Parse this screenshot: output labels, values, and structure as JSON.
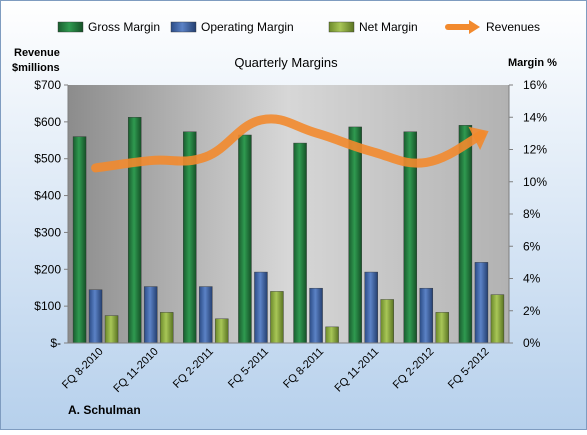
{
  "chart_data": {
    "type": "bar",
    "title": "Quarterly Margins",
    "left_axis_title_line1": "Revenue",
    "left_axis_title_line2": "$millions",
    "right_axis_title": "Margin %",
    "author": "A. Schulman",
    "categories": [
      "FQ 8-2010",
      "FQ 11-2010",
      "FQ 2-2011",
      "FQ 5-2011",
      "FQ 8-2011",
      "FQ 11-2011",
      "FQ 2-2012",
      "FQ 5-2012"
    ],
    "left_axis": {
      "min": 0,
      "max": 700,
      "step": 100,
      "tick_labels": [
        "$-",
        "$100",
        "$200",
        "$300",
        "$400",
        "$500",
        "$600",
        "$700"
      ]
    },
    "right_axis": {
      "min": 0,
      "max": 16,
      "step": 2,
      "tick_labels": [
        "0%",
        "2%",
        "4%",
        "6%",
        "8%",
        "10%",
        "12%",
        "14%",
        "16%"
      ]
    },
    "series": [
      {
        "name": "Gross Margin",
        "axis": "right",
        "unit": "%",
        "color": "#1f7a3c",
        "values": [
          12.8,
          14.0,
          13.1,
          12.9,
          12.4,
          13.4,
          13.1,
          13.5
        ]
      },
      {
        "name": "Operating Margin",
        "axis": "right",
        "unit": "%",
        "color": "#3d62a8",
        "values": [
          3.3,
          3.5,
          3.5,
          4.4,
          3.4,
          4.4,
          3.4,
          5.0
        ]
      },
      {
        "name": "Net Margin",
        "axis": "right",
        "unit": "%",
        "color": "#8aab3a",
        "values": [
          1.7,
          1.9,
          1.5,
          3.2,
          1.0,
          2.7,
          1.9,
          3.0
        ]
      },
      {
        "name": "Revenues",
        "axis": "left",
        "unit": "$M",
        "type": "line",
        "color": "#f28a2e",
        "values": [
          475,
          495,
          505,
          605,
          570,
          520,
          490,
          565
        ]
      }
    ],
    "legend_position": "top",
    "grid": false
  }
}
